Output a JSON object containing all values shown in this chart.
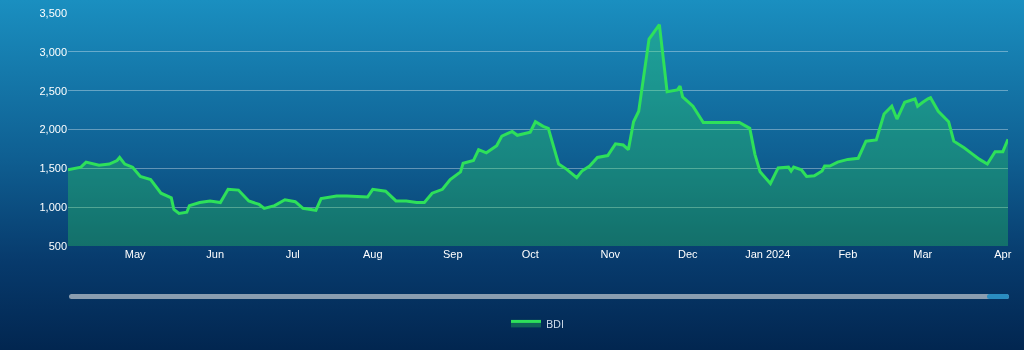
{
  "chart_data": {
    "type": "area",
    "x": [
      "2023-04-05",
      "2023-04-10",
      "2023-04-12",
      "2023-04-17",
      "2023-04-21",
      "2023-04-24",
      "2023-04-25",
      "2023-04-27",
      "2023-04-30",
      "2023-05-03",
      "2023-05-07",
      "2023-05-11",
      "2023-05-15",
      "2023-05-16",
      "2023-05-18",
      "2023-05-21",
      "2023-05-22",
      "2023-05-26",
      "2023-05-30",
      "2023-06-03",
      "2023-06-06",
      "2023-06-10",
      "2023-06-14",
      "2023-06-18",
      "2023-06-20",
      "2023-06-24",
      "2023-06-28",
      "2023-07-02",
      "2023-07-05",
      "2023-07-10",
      "2023-07-12",
      "2023-07-18",
      "2023-07-22",
      "2023-07-30",
      "2023-08-01",
      "2023-08-06",
      "2023-08-10",
      "2023-08-14",
      "2023-08-18",
      "2023-08-21",
      "2023-08-24",
      "2023-08-28",
      "2023-08-31",
      "2023-09-04",
      "2023-09-05",
      "2023-09-09",
      "2023-09-11",
      "2023-09-14",
      "2023-09-18",
      "2023-09-20",
      "2023-09-24",
      "2023-09-26",
      "2023-10-01",
      "2023-10-03",
      "2023-10-06",
      "2023-10-08",
      "2023-10-12",
      "2023-10-15",
      "2023-10-19",
      "2023-10-21",
      "2023-10-24",
      "2023-10-27",
      "2023-10-31",
      "2023-11-03",
      "2023-11-06",
      "2023-11-08",
      "2023-11-10",
      "2023-11-12",
      "2023-11-16",
      "2023-11-20",
      "2023-11-23",
      "2023-11-27",
      "2023-11-28",
      "2023-11-29",
      "2023-12-03",
      "2023-12-07",
      "2023-12-15",
      "2023-12-21",
      "2023-12-25",
      "2023-12-27",
      "2023-12-29",
      "2024-01-02",
      "2024-01-05",
      "2024-01-09",
      "2024-01-10",
      "2024-01-11",
      "2024-01-14",
      "2024-01-16",
      "2024-01-19",
      "2024-01-22",
      "2024-01-23",
      "2024-01-25",
      "2024-01-28",
      "2024-02-01",
      "2024-02-05",
      "2024-02-08",
      "2024-02-12",
      "2024-02-15",
      "2024-02-18",
      "2024-02-20",
      "2024-02-23",
      "2024-02-27",
      "2024-02-28",
      "2024-03-01",
      "2024-03-03",
      "2024-03-04",
      "2024-03-07",
      "2024-03-11",
      "2024-03-13",
      "2024-03-17",
      "2024-03-20",
      "2024-03-23",
      "2024-03-26",
      "2024-03-29",
      "2024-04-01",
      "2024-04-03"
    ],
    "series": [
      {
        "name": "BDI",
        "color": "#2ee05a",
        "values": [
          1480,
          1515,
          1580,
          1540,
          1555,
          1600,
          1640,
          1555,
          1515,
          1395,
          1355,
          1180,
          1120,
          970,
          920,
          935,
          1020,
          1060,
          1080,
          1060,
          1230,
          1220,
          1080,
          1035,
          985,
          1020,
          1095,
          1070,
          985,
          960,
          1110,
          1145,
          1145,
          1130,
          1230,
          1205,
          1080,
          1080,
          1060,
          1060,
          1180,
          1230,
          1355,
          1455,
          1565,
          1600,
          1740,
          1700,
          1790,
          1915,
          1975,
          1925,
          1965,
          2100,
          2040,
          2015,
          1555,
          1490,
          1380,
          1465,
          1530,
          1640,
          1665,
          1815,
          1800,
          1740,
          2100,
          2235,
          3165,
          3350,
          2485,
          2510,
          2560,
          2420,
          2300,
          2090,
          2090,
          2090,
          2015,
          1680,
          1455,
          1305,
          1505,
          1515,
          1465,
          1515,
          1480,
          1395,
          1405,
          1465,
          1530,
          1530,
          1580,
          1615,
          1630,
          1850,
          1865,
          2200,
          2300,
          2135,
          2350,
          2395,
          2300,
          2350,
          2395,
          2410,
          2235,
          2100,
          1850,
          1765,
          1690,
          1615,
          1555,
          1715,
          1715,
          1875
        ]
      }
    ],
    "xlim": [
      "2023-04-05",
      "2024-04-03"
    ],
    "xticks": [
      {
        "value": "2023-05-01",
        "label": "May"
      },
      {
        "value": "2023-06-01",
        "label": "Jun"
      },
      {
        "value": "2023-07-01",
        "label": "Jul"
      },
      {
        "value": "2023-08-01",
        "label": "Aug"
      },
      {
        "value": "2023-09-01",
        "label": "Sep"
      },
      {
        "value": "2023-10-01",
        "label": "Oct"
      },
      {
        "value": "2023-11-01",
        "label": "Nov"
      },
      {
        "value": "2023-12-01",
        "label": "Dec"
      },
      {
        "value": "2024-01-01",
        "label": "Jan 2024"
      },
      {
        "value": "2024-02-01",
        "label": "Feb"
      },
      {
        "value": "2024-03-01",
        "label": "Mar"
      },
      {
        "value": "2024-04-01",
        "label": "Apr"
      }
    ],
    "ylim": [
      500,
      3500
    ],
    "yticks": [
      {
        "value": 500,
        "label": "500"
      },
      {
        "value": 1000,
        "label": "1,000"
      },
      {
        "value": 1500,
        "label": "1,500"
      },
      {
        "value": 2000,
        "label": "2,000"
      },
      {
        "value": 2500,
        "label": "2,500"
      },
      {
        "value": 3000,
        "label": "3,000"
      },
      {
        "value": 3500,
        "label": "3,500"
      }
    ],
    "grid": "y",
    "legend": "bottom",
    "marker": "none",
    "line_style": "solid"
  }
}
